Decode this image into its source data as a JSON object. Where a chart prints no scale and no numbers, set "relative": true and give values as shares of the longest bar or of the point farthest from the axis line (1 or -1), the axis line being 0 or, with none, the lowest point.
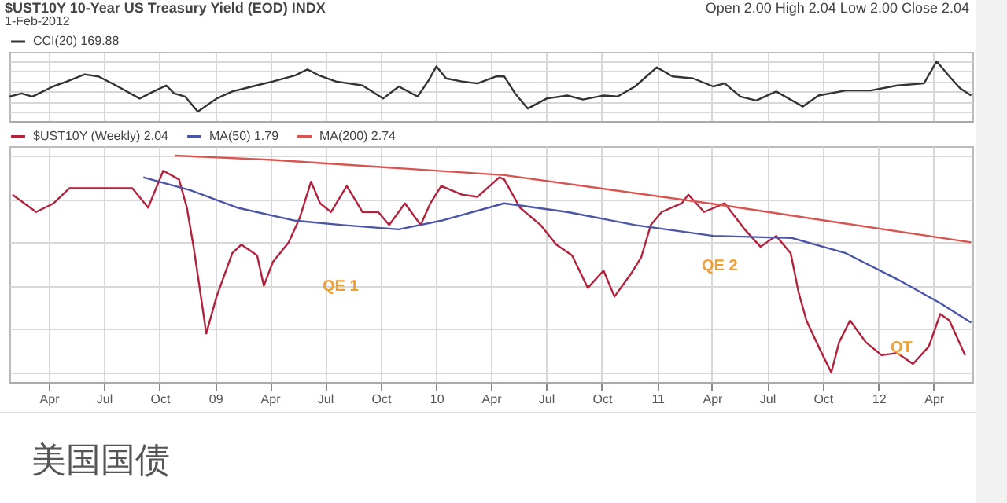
{
  "chart_data": [
    {
      "type": "line",
      "title": "$UST10Y 10-Year US Treasury Yield (EOD) INDX",
      "subtitle": "1-Feb-2012",
      "annotations": [
        "Open 2.00  High 2.04  Low 2.00  Close 2.04"
      ],
      "relative": true,
      "tick_labels": false,
      "grid": true,
      "legend": "top",
      "xlim": [
        "2008-01-27",
        "2012-06-04"
      ],
      "xticks": [
        {
          "value": "2008-04-01",
          "label": null
        },
        {
          "value": "2008-07-01",
          "label": null
        },
        {
          "value": "2008-10-01",
          "label": null
        },
        {
          "value": "2009-01-01",
          "label": null
        },
        {
          "value": "2009-04-01",
          "label": null
        },
        {
          "value": "2009-07-01",
          "label": null
        },
        {
          "value": "2009-10-01",
          "label": null
        },
        {
          "value": "2010-01-01",
          "label": null
        },
        {
          "value": "2010-04-01",
          "label": null
        },
        {
          "value": "2010-07-01",
          "label": null
        },
        {
          "value": "2010-10-01",
          "label": null
        },
        {
          "value": "2011-01-01",
          "label": null
        },
        {
          "value": "2011-04-01",
          "label": null
        },
        {
          "value": "2011-07-01",
          "label": null
        },
        {
          "value": "2011-10-01",
          "label": null
        },
        {
          "value": "2012-01-01",
          "label": null
        },
        {
          "value": "2012-04-01",
          "label": null
        }
      ],
      "series": [
        {
          "name": "CCI(20) 169.88",
          "color": "#333333",
          "x": [
            "2008-01-27",
            "2008-02-16",
            "2008-03-05",
            "2008-04-08",
            "2008-05-01",
            "2008-05-30",
            "2008-06-22",
            "2008-07-21",
            "2008-08-29",
            "2008-09-21",
            "2008-10-12",
            "2008-10-25",
            "2008-11-12",
            "2008-12-03",
            "2009-01-03",
            "2009-01-29",
            "2009-03-03",
            "2009-04-06",
            "2009-05-13",
            "2009-06-02",
            "2009-06-21",
            "2009-07-19",
            "2009-09-01",
            "2009-10-05",
            "2009-10-31",
            "2009-12-01",
            "2009-12-19",
            "2010-01-01",
            "2010-01-17",
            "2010-02-12",
            "2010-03-10",
            "2010-04-10",
            "2010-04-23",
            "2010-05-11",
            "2010-06-01",
            "2010-07-02",
            "2010-08-05",
            "2010-08-31",
            "2010-10-04",
            "2010-10-27",
            "2010-11-25",
            "2010-12-31",
            "2011-01-26",
            "2011-03-01",
            "2011-04-03",
            "2011-04-22",
            "2011-05-18",
            "2011-06-13",
            "2011-07-16",
            "2011-08-29",
            "2011-09-24",
            "2011-11-08",
            "2011-12-19",
            "2012-02-01",
            "2012-03-16",
            "2012-04-06",
            "2012-04-27",
            "2012-05-15",
            "2012-06-02"
          ],
          "values": [
            0.3,
            0.36,
            0.3,
            0.5,
            0.6,
            0.74,
            0.7,
            0.52,
            0.26,
            0.4,
            0.52,
            0.36,
            0.3,
            0,
            0.26,
            0.4,
            0.5,
            0.6,
            0.72,
            0.84,
            0.72,
            0.6,
            0.52,
            0.26,
            0.5,
            0.3,
            0.62,
            0.9,
            0.66,
            0.6,
            0.56,
            0.7,
            0.7,
            0.36,
            0.06,
            0.26,
            0.32,
            0.24,
            0.32,
            0.3,
            0.5,
            0.88,
            0.7,
            0.66,
            0.5,
            0.56,
            0.3,
            0.22,
            0.4,
            0.1,
            0.32,
            0.42,
            0.42,
            0.52,
            0.56,
            1,
            0.7,
            0.46,
            0.32
          ]
        }
      ]
    },
    {
      "type": "line",
      "relative": true,
      "grid": true,
      "legend": "top",
      "annotations": [
        "QE 1",
        "QE 2",
        "QT",
        "美国国债"
      ],
      "xlim": [
        "2008-01-27",
        "2012-06-04"
      ],
      "xticks": [
        {
          "value": "2008-04-01",
          "label": "Apr"
        },
        {
          "value": "2008-07-01",
          "label": "Jul"
        },
        {
          "value": "2008-10-01",
          "label": "Oct"
        },
        {
          "value": "2009-01-01",
          "label": "09"
        },
        {
          "value": "2009-04-01",
          "label": "Apr"
        },
        {
          "value": "2009-07-01",
          "label": "Jul"
        },
        {
          "value": "2009-10-01",
          "label": "Oct"
        },
        {
          "value": "2010-01-01",
          "label": "10"
        },
        {
          "value": "2010-04-01",
          "label": "Apr"
        },
        {
          "value": "2010-07-01",
          "label": "Jul"
        },
        {
          "value": "2010-10-01",
          "label": "Oct"
        },
        {
          "value": "2011-01-01",
          "label": "11"
        },
        {
          "value": "2011-04-01",
          "label": "Apr"
        },
        {
          "value": "2011-07-01",
          "label": "Jul"
        },
        {
          "value": "2011-10-01",
          "label": "Oct"
        },
        {
          "value": "2012-01-01",
          "label": "12"
        },
        {
          "value": "2012-04-01",
          "label": "Apr"
        }
      ],
      "series": [
        {
          "name": "$UST10Y (Weekly) 2.04",
          "color": "#b2223c",
          "x": [
            "2008-02-01",
            "2008-03-11",
            "2008-04-09",
            "2008-05-05",
            "2008-08-17",
            "2008-09-12",
            "2008-10-07",
            "2008-11-02",
            "2008-11-15",
            "2008-11-26",
            "2008-12-04",
            "2008-12-17",
            "2009-01-03",
            "2009-01-29",
            "2009-02-13",
            "2009-03-11",
            "2009-03-22",
            "2009-04-06",
            "2009-05-02",
            "2009-05-20",
            "2009-06-08",
            "2009-06-23",
            "2009-07-11",
            "2009-08-06",
            "2009-09-01",
            "2009-09-27",
            "2009-10-15",
            "2009-11-10",
            "2009-12-06",
            "2009-12-22",
            "2010-01-09",
            "2010-02-12",
            "2010-03-10",
            "2010-04-15",
            "2010-04-23",
            "2010-05-19",
            "2010-06-22",
            "2010-07-18",
            "2010-08-13",
            "2010-09-08",
            "2010-10-04",
            "2010-10-22",
            "2010-11-17",
            "2010-12-05",
            "2010-12-21",
            "2011-01-08",
            "2011-02-10",
            "2011-02-21",
            "2011-03-19",
            "2011-04-22",
            "2011-05-25",
            "2011-06-20",
            "2011-07-16",
            "2011-08-09",
            "2011-08-22",
            "2011-09-04",
            "2011-09-24",
            "2011-10-15",
            "2011-10-28",
            "2011-11-15",
            "2011-12-11",
            "2012-01-06",
            "2012-02-01",
            "2012-02-27",
            "2012-03-24",
            "2012-04-12",
            "2012-04-27",
            "2012-05-23"
          ],
          "values": [
            0.82,
            0.74,
            0.78,
            0.85,
            0.85,
            0.76,
            0.93,
            0.89,
            0.76,
            0.58,
            0.43,
            0.18,
            0.35,
            0.55,
            0.59,
            0.54,
            0.4,
            0.51,
            0.6,
            0.71,
            0.88,
            0.78,
            0.74,
            0.86,
            0.74,
            0.74,
            0.68,
            0.78,
            0.68,
            0.78,
            0.86,
            0.82,
            0.81,
            0.9,
            0.89,
            0.76,
            0.68,
            0.59,
            0.54,
            0.39,
            0.47,
            0.35,
            0.45,
            0.53,
            0.68,
            0.74,
            0.78,
            0.82,
            0.74,
            0.78,
            0.66,
            0.58,
            0.63,
            0.55,
            0.37,
            0.24,
            0.12,
            0,
            0.14,
            0.24,
            0.14,
            0.08,
            0.09,
            0.04,
            0.12,
            0.27,
            0.24,
            0.08
          ]
        },
        {
          "name": "MA(50) 1.79",
          "color": "#4a55a8",
          "x": [
            "2008-09-04",
            "2008-11-21",
            "2009-02-06",
            "2009-05-13",
            "2009-07-30",
            "2009-10-31",
            "2010-01-09",
            "2010-04-23",
            "2010-08-05",
            "2010-11-25",
            "2011-04-03",
            "2011-08-11",
            "2011-11-08",
            "2012-02-01",
            "2012-04-12",
            "2012-06-02"
          ],
          "values": [
            0.9,
            0.84,
            0.76,
            0.7,
            0.68,
            0.66,
            0.7,
            0.78,
            0.74,
            0.68,
            0.63,
            0.62,
            0.55,
            0.43,
            0.32,
            0.23
          ]
        },
        {
          "name": "MA(200) 2.74",
          "color": "#d9534f",
          "x": [
            "2008-10-26",
            "2009-04-06",
            "2010-04-23",
            "2011-04-22",
            "2012-06-02"
          ],
          "values": [
            1,
            0.98,
            0.91,
            0.77,
            0.6
          ]
        }
      ]
    }
  ]
}
